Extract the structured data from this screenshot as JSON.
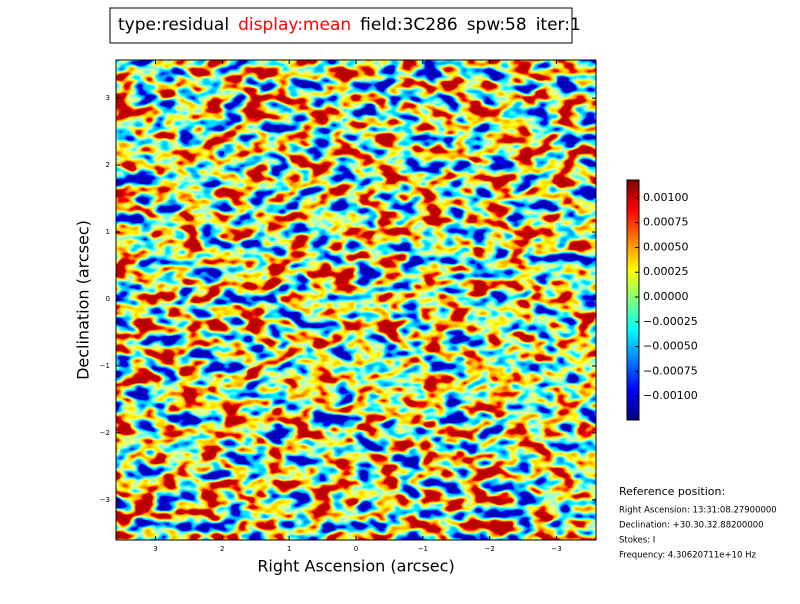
{
  "chart_data": {
    "type": "image",
    "title_parts": [
      "type:residual",
      "display:mean",
      "field:3C286",
      "spw:58",
      "iter:1"
    ],
    "x_label": "Right Ascension (arcsec)",
    "y_label": "Declination (arcsec)",
    "xlim": [
      3.59,
      -3.59
    ],
    "ylim": [
      -3.6,
      3.57
    ],
    "xticks": [
      3,
      2,
      1,
      0,
      {
        "value": -1,
        "label": "−1"
      },
      {
        "value": -2,
        "label": "−2"
      },
      {
        "value": -3,
        "label": "−3"
      }
    ],
    "yticks": [
      {
        "value": -3,
        "label": "−3"
      },
      {
        "value": -2,
        "label": "−2"
      },
      {
        "value": -1,
        "label": "−1"
      },
      0,
      1,
      2,
      3
    ],
    "colorbar": {
      "lim": [
        -0.00124,
        0.00118
      ],
      "ticks": [
        {
          "value": 0.001,
          "label": "0.00100"
        },
        {
          "value": 0.00075,
          "label": "0.00075"
        },
        {
          "value": 0.0005,
          "label": "0.00050"
        },
        {
          "value": 0.00025,
          "label": "0.00025"
        },
        {
          "value": 0,
          "label": "0.00000"
        },
        {
          "value": -0.00025,
          "label": "−0.00025"
        },
        {
          "value": -0.0005,
          "label": "−0.00050"
        },
        {
          "value": -0.00075,
          "label": "−0.00075"
        },
        {
          "value": -0.001,
          "label": "−0.00100"
        }
      ]
    },
    "reference": {
      "heading": "Reference position:",
      "lines": [
        "Right Ascension: 13:31:08.27900000",
        "Declination: +30.30.32.88200000",
        "Stokes: I",
        "Frequency: 4.30620711e+10 Hz"
      ]
    }
  }
}
